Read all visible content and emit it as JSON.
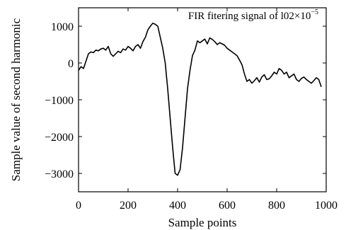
{
  "chart_data": {
    "type": "line",
    "title": "",
    "annotation": "FIR fitering signal of l02×10",
    "annotation_exponent": "−5",
    "xlabel": "Sample points",
    "ylabel": "Sample value of second harmonic",
    "xlim": [
      0,
      1000
    ],
    "ylim": [
      -3500,
      1500
    ],
    "x_ticks": [
      0,
      200,
      400,
      600,
      800,
      1000
    ],
    "x_tick_labels": [
      "0",
      "200",
      "400",
      "600",
      "800",
      "1000"
    ],
    "y_ticks": [
      1000,
      0,
      -1000,
      -2000,
      -3000
    ],
    "y_tick_labels": [
      "1000",
      "0",
      "−1000",
      "−2000",
      "−3000"
    ],
    "grid": false,
    "legend": "none",
    "line_color": "#000000",
    "series": [
      {
        "x": [
          0,
          10,
          20,
          30,
          40,
          50,
          60,
          70,
          80,
          90,
          100,
          110,
          120,
          130,
          140,
          150,
          160,
          170,
          180,
          190,
          200,
          210,
          220,
          230,
          240,
          250,
          260,
          270,
          280,
          290,
          300,
          310,
          320,
          330,
          340,
          350,
          360,
          370,
          380,
          390,
          400,
          410,
          420,
          430,
          440,
          450,
          460,
          470,
          480,
          490,
          500,
          510,
          520,
          530,
          540,
          550,
          560,
          570,
          580,
          590,
          600,
          610,
          620,
          630,
          640,
          650,
          660,
          670,
          680,
          690,
          700,
          710,
          720,
          730,
          740,
          750,
          760,
          770,
          780,
          790,
          800,
          810,
          820,
          830,
          840,
          850,
          860,
          870,
          880,
          890,
          900,
          910,
          920,
          930,
          940,
          950,
          960,
          970,
          980
        ],
        "y": [
          -200,
          -100,
          -150,
          50,
          250,
          300,
          280,
          350,
          330,
          380,
          400,
          350,
          450,
          250,
          180,
          250,
          320,
          280,
          380,
          350,
          450,
          400,
          330,
          450,
          500,
          400,
          580,
          700,
          900,
          1000,
          1080,
          1050,
          1000,
          700,
          400,
          0,
          -700,
          -1500,
          -2300,
          -3000,
          -3050,
          -2900,
          -2300,
          -1500,
          -700,
          -200,
          200,
          350,
          600,
          550,
          600,
          650,
          520,
          680,
          640,
          580,
          500,
          550,
          520,
          480,
          400,
          350,
          300,
          250,
          200,
          80,
          -50,
          -300,
          -500,
          -450,
          -550,
          -480,
          -400,
          -520,
          -380,
          -320,
          -450,
          -430,
          -350,
          -250,
          -300,
          -150,
          -200,
          -300,
          -250,
          -400,
          -350,
          -300,
          -450,
          -500,
          -420,
          -380,
          -450,
          -500,
          -550,
          -480,
          -400,
          -450,
          -650
        ]
      }
    ]
  }
}
